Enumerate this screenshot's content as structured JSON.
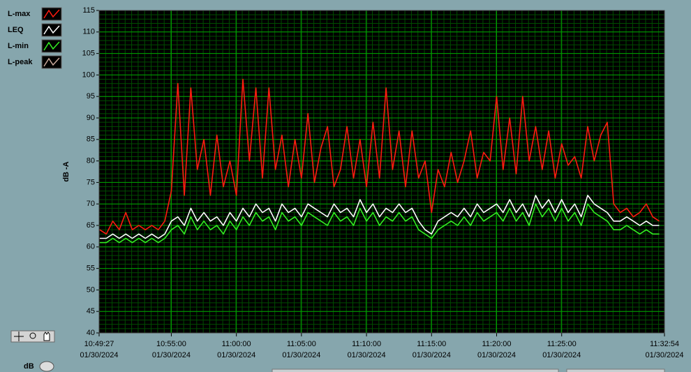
{
  "chart_data": {
    "type": "line",
    "y_label": "dB -A",
    "x_date": "01/30/2024",
    "xlim": [
      "10:49:27",
      "11:32:54"
    ],
    "xticks": [
      "10:49:27",
      "10:55:00",
      "11:00:00",
      "11:05:00",
      "11:10:00",
      "11:15:00",
      "11:20:00",
      "11:25:00",
      "11:32:54"
    ],
    "ylim": [
      40,
      115
    ],
    "yticks": [
      40,
      45,
      50,
      55,
      60,
      65,
      70,
      75,
      80,
      85,
      90,
      95,
      100,
      105,
      110,
      115
    ],
    "grid": true,
    "x": [
      "10:49:30",
      "10:50:00",
      "10:50:30",
      "10:51:00",
      "10:51:30",
      "10:52:00",
      "10:52:30",
      "10:53:00",
      "10:53:30",
      "10:54:00",
      "10:54:30",
      "10:55:00",
      "10:55:30",
      "10:56:00",
      "10:56:30",
      "10:57:00",
      "10:57:30",
      "10:58:00",
      "10:58:30",
      "10:59:00",
      "10:59:30",
      "11:00:00",
      "11:00:30",
      "11:01:00",
      "11:01:30",
      "11:02:00",
      "11:02:30",
      "11:03:00",
      "11:03:30",
      "11:04:00",
      "11:04:30",
      "11:05:00",
      "11:05:30",
      "11:06:00",
      "11:06:30",
      "11:07:00",
      "11:07:30",
      "11:08:00",
      "11:08:30",
      "11:09:00",
      "11:09:30",
      "11:10:00",
      "11:10:30",
      "11:11:00",
      "11:11:30",
      "11:12:00",
      "11:12:30",
      "11:13:00",
      "11:13:30",
      "11:14:00",
      "11:14:30",
      "11:15:00",
      "11:15:30",
      "11:16:00",
      "11:16:30",
      "11:17:00",
      "11:17:30",
      "11:18:00",
      "11:18:30",
      "11:19:00",
      "11:19:30",
      "11:20:00",
      "11:20:30",
      "11:21:00",
      "11:21:30",
      "11:22:00",
      "11:22:30",
      "11:23:00",
      "11:23:30",
      "11:24:00",
      "11:24:30",
      "11:25:00",
      "11:25:30",
      "11:26:00",
      "11:26:30",
      "11:27:00",
      "11:27:30",
      "11:28:00",
      "11:28:30",
      "11:29:00",
      "11:29:30",
      "11:30:00",
      "11:30:30",
      "11:31:00",
      "11:31:30",
      "11:32:00",
      "11:32:30"
    ],
    "series": [
      {
        "name": "L-max",
        "color": "#ff1a10",
        "values": [
          64,
          63,
          66,
          64,
          68,
          64,
          65,
          64,
          65,
          64,
          66,
          73,
          98,
          72,
          97,
          78,
          85,
          72,
          86,
          74,
          80,
          72,
          99,
          80,
          97,
          76,
          97,
          78,
          86,
          74,
          85,
          76,
          91,
          75,
          83,
          88,
          74,
          78,
          88,
          76,
          85,
          74,
          89,
          76,
          97,
          78,
          87,
          74,
          87,
          76,
          80,
          68,
          78,
          74,
          82,
          75,
          80,
          87,
          76,
          82,
          80,
          95,
          78,
          90,
          77,
          95,
          80,
          88,
          78,
          87,
          76,
          84,
          79,
          81,
          76,
          88,
          80,
          86,
          89,
          70,
          68,
          69,
          67,
          68,
          70,
          67,
          66
        ]
      },
      {
        "name": "LEQ",
        "color": "#ffffff",
        "values": [
          62,
          62,
          63,
          62,
          63,
          62,
          63,
          62,
          63,
          62,
          63,
          66,
          67,
          65,
          69,
          66,
          68,
          66,
          67,
          65,
          68,
          66,
          69,
          67,
          70,
          68,
          69,
          66,
          70,
          68,
          69,
          67,
          70,
          69,
          68,
          67,
          70,
          68,
          69,
          67,
          71,
          68,
          70,
          67,
          69,
          68,
          70,
          68,
          69,
          66,
          64,
          63,
          66,
          67,
          68,
          67,
          69,
          67,
          70,
          68,
          69,
          70,
          68,
          71,
          68,
          70,
          67,
          72,
          69,
          71,
          68,
          71,
          68,
          70,
          67,
          72,
          70,
          69,
          68,
          66,
          66,
          67,
          66,
          65,
          66,
          65,
          65
        ]
      },
      {
        "name": "L-min",
        "color": "#33ee22",
        "values": [
          61,
          61,
          62,
          61,
          62,
          61,
          62,
          61,
          62,
          61,
          62,
          64,
          65,
          63,
          67,
          64,
          66,
          64,
          65,
          63,
          66,
          64,
          67,
          65,
          68,
          66,
          67,
          64,
          68,
          66,
          67,
          65,
          68,
          67,
          66,
          65,
          68,
          66,
          67,
          65,
          69,
          66,
          68,
          65,
          67,
          66,
          68,
          66,
          67,
          64,
          63,
          62,
          64,
          65,
          66,
          65,
          67,
          65,
          68,
          66,
          67,
          68,
          66,
          69,
          66,
          68,
          65,
          70,
          67,
          69,
          66,
          69,
          66,
          68,
          65,
          70,
          68,
          67,
          66,
          64,
          64,
          65,
          64,
          63,
          64,
          63,
          63
        ]
      },
      {
        "name": "L-peak",
        "color": "#c9a99c"
      }
    ]
  },
  "controls": {
    "toggle_label": "dB"
  }
}
